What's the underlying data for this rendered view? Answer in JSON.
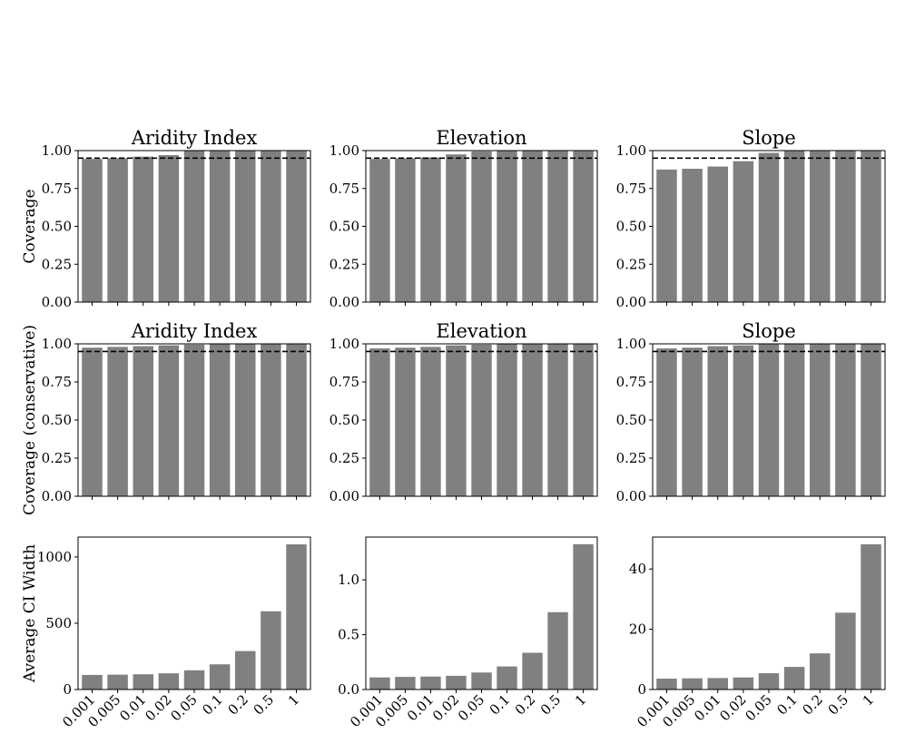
{
  "chart_data": [
    {
      "type": "bar",
      "panel": "coverage-aridity",
      "title": "Aridity Index",
      "ylabel": "Coverage",
      "xlabel": "",
      "categories": [
        "0.001",
        "0.005",
        "0.01",
        "0.02",
        "0.05",
        "0.1",
        "0.2",
        "0.5",
        "1"
      ],
      "values": [
        0.945,
        0.95,
        0.96,
        0.97,
        1.0,
        1.0,
        1.0,
        1.0,
        1.0
      ],
      "ylim": [
        0,
        1
      ],
      "yticks": [
        "0.00",
        "0.25",
        "0.50",
        "0.75",
        "1.00"
      ],
      "show_xticklabels": false,
      "reference_line": 0.95,
      "reference_style": "dashed",
      "bar_color": "#808080"
    },
    {
      "type": "bar",
      "panel": "coverage-elevation",
      "title": "Elevation",
      "ylabel": "",
      "xlabel": "",
      "categories": [
        "0.001",
        "0.005",
        "0.01",
        "0.02",
        "0.05",
        "0.1",
        "0.2",
        "0.5",
        "1"
      ],
      "values": [
        0.945,
        0.95,
        0.955,
        0.975,
        0.995,
        1.0,
        1.0,
        1.0,
        1.0
      ],
      "ylim": [
        0,
        1
      ],
      "yticks": [
        "0.00",
        "0.25",
        "0.50",
        "0.75",
        "1.00"
      ],
      "show_xticklabels": false,
      "reference_line": 0.95,
      "reference_style": "dashed",
      "bar_color": "#808080"
    },
    {
      "type": "bar",
      "panel": "coverage-slope",
      "title": "Slope",
      "ylabel": "",
      "xlabel": "",
      "categories": [
        "0.001",
        "0.005",
        "0.01",
        "0.02",
        "0.05",
        "0.1",
        "0.2",
        "0.5",
        "1"
      ],
      "values": [
        0.875,
        0.88,
        0.895,
        0.93,
        0.985,
        1.0,
        1.0,
        1.0,
        1.0
      ],
      "ylim": [
        0,
        1
      ],
      "yticks": [
        "0.00",
        "0.25",
        "0.50",
        "0.75",
        "1.00"
      ],
      "show_xticklabels": false,
      "reference_line": 0.95,
      "reference_style": "dashed",
      "bar_color": "#808080"
    },
    {
      "type": "bar",
      "panel": "conservative-aridity",
      "title": "Aridity Index",
      "ylabel": "Coverage (conservative)",
      "xlabel": "",
      "categories": [
        "0.001",
        "0.005",
        "0.01",
        "0.02",
        "0.05",
        "0.1",
        "0.2",
        "0.5",
        "1"
      ],
      "values": [
        0.975,
        0.98,
        0.985,
        0.99,
        0.995,
        1.0,
        1.0,
        1.0,
        1.0
      ],
      "ylim": [
        0,
        1
      ],
      "yticks": [
        "0.00",
        "0.25",
        "0.50",
        "0.75",
        "1.00"
      ],
      "show_xticklabels": false,
      "reference_line": 0.95,
      "reference_style": "dashed",
      "bar_color": "#808080"
    },
    {
      "type": "bar",
      "panel": "conservative-elevation",
      "title": "Elevation",
      "ylabel": "",
      "xlabel": "",
      "categories": [
        "0.001",
        "0.005",
        "0.01",
        "0.02",
        "0.05",
        "0.1",
        "0.2",
        "0.5",
        "1"
      ],
      "values": [
        0.97,
        0.975,
        0.98,
        0.99,
        0.995,
        1.0,
        1.0,
        1.0,
        1.0
      ],
      "ylim": [
        0,
        1
      ],
      "yticks": [
        "0.00",
        "0.25",
        "0.50",
        "0.75",
        "1.00"
      ],
      "show_xticklabels": false,
      "reference_line": 0.95,
      "reference_style": "dashed",
      "bar_color": "#808080"
    },
    {
      "type": "bar",
      "panel": "conservative-slope",
      "title": "Slope",
      "ylabel": "",
      "xlabel": "",
      "categories": [
        "0.001",
        "0.005",
        "0.01",
        "0.02",
        "0.05",
        "0.1",
        "0.2",
        "0.5",
        "1"
      ],
      "values": [
        0.97,
        0.975,
        0.985,
        0.99,
        1.0,
        1.0,
        1.0,
        1.0,
        1.0
      ],
      "ylim": [
        0,
        1
      ],
      "yticks": [
        "0.00",
        "0.25",
        "0.50",
        "0.75",
        "1.00"
      ],
      "show_xticklabels": false,
      "reference_line": 0.95,
      "reference_style": "dashed",
      "bar_color": "#808080"
    },
    {
      "type": "bar",
      "panel": "width-aridity",
      "title": "",
      "ylabel": "Average CI Width",
      "xlabel": "",
      "categories": [
        "0.001",
        "0.005",
        "0.01",
        "0.02",
        "0.05",
        "0.1",
        "0.2",
        "0.5",
        "1"
      ],
      "values": [
        110,
        112,
        115,
        122,
        145,
        190,
        290,
        590,
        1095
      ],
      "ylim": [
        0,
        1150
      ],
      "yticks": [
        "0",
        "500",
        "1000"
      ],
      "show_xticklabels": true,
      "bar_color": "#808080"
    },
    {
      "type": "bar",
      "panel": "width-elevation",
      "title": "",
      "ylabel": "",
      "xlabel": "",
      "categories": [
        "0.001",
        "0.005",
        "0.01",
        "0.02",
        "0.05",
        "0.1",
        "0.2",
        "0.5",
        "1"
      ],
      "values": [
        0.11,
        0.115,
        0.118,
        0.125,
        0.155,
        0.21,
        0.335,
        0.705,
        1.325
      ],
      "ylim": [
        0,
        1.39
      ],
      "yticks": [
        "0.0",
        "0.5",
        "1.0"
      ],
      "show_xticklabels": true,
      "bar_color": "#808080"
    },
    {
      "type": "bar",
      "panel": "width-slope",
      "title": "",
      "ylabel": "",
      "xlabel": "",
      "categories": [
        "0.001",
        "0.005",
        "0.01",
        "0.02",
        "0.05",
        "0.1",
        "0.2",
        "0.5",
        "1"
      ],
      "values": [
        3.6,
        3.7,
        3.8,
        4.0,
        5.4,
        7.5,
        12.0,
        25.5,
        48.2
      ],
      "ylim": [
        0,
        50.6
      ],
      "yticks": [
        "0",
        "20",
        "40"
      ],
      "show_xticklabels": true,
      "bar_color": "#808080"
    }
  ]
}
